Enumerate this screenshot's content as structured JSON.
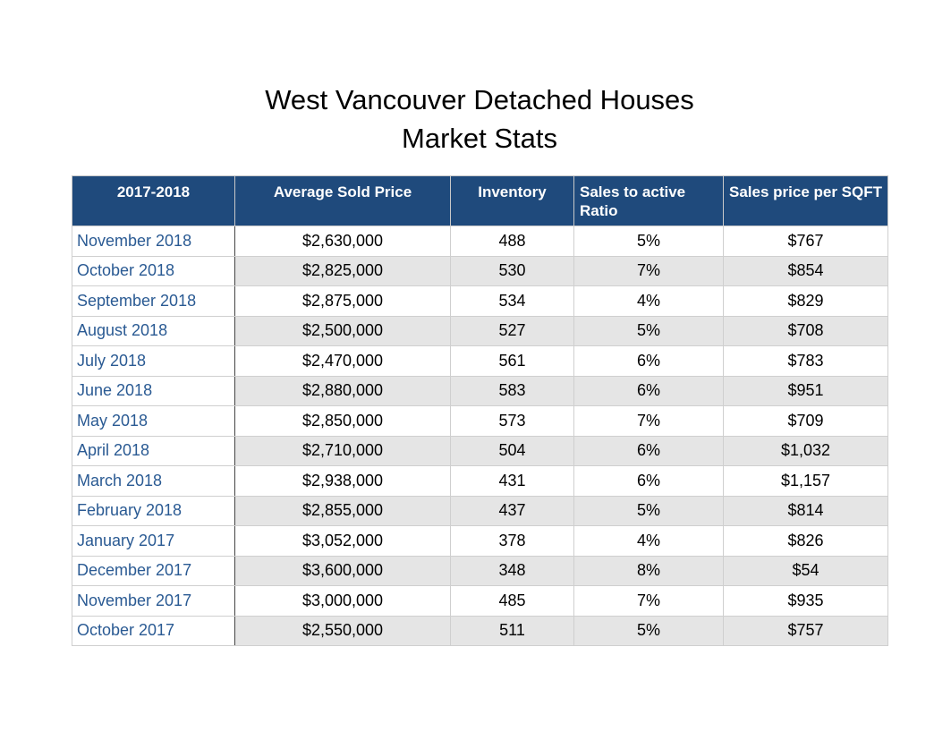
{
  "chart_data": {
    "type": "table",
    "title": [
      "West Vancouver Detached Houses",
      "Market Stats"
    ],
    "columns": [
      "2017-2018",
      "Average Sold Price",
      "Inventory",
      "Sales to active Ratio",
      "Sales price per SQFT"
    ],
    "rows": [
      [
        "November 2018",
        "$2,630,000",
        "488",
        "5%",
        "$767"
      ],
      [
        "October 2018",
        "$2,825,000",
        "530",
        "7%",
        "$854"
      ],
      [
        "September 2018",
        "$2,875,000",
        "534",
        "4%",
        "$829"
      ],
      [
        "August 2018",
        "$2,500,000",
        "527",
        "5%",
        "$708"
      ],
      [
        "July 2018",
        "$2,470,000",
        "561",
        "6%",
        "$783"
      ],
      [
        "June 2018",
        "$2,880,000",
        "583",
        "6%",
        "$951"
      ],
      [
        "May 2018",
        "$2,850,000",
        "573",
        "7%",
        "$709"
      ],
      [
        "April 2018",
        "$2,710,000",
        "504",
        "6%",
        "$1,032"
      ],
      [
        "March 2018",
        "$2,938,000",
        "431",
        "6%",
        "$1,157"
      ],
      [
        "February 2018",
        "$2,855,000",
        "437",
        "5%",
        "$814"
      ],
      [
        "January 2017",
        "$3,052,000",
        "378",
        "4%",
        "$826"
      ],
      [
        "December 2017",
        "$3,600,000",
        "348",
        "8%",
        "$54"
      ],
      [
        "November 2017",
        "$3,000,000",
        "485",
        "7%",
        "$935"
      ],
      [
        "October 2017",
        "$2,550,000",
        "511",
        "5%",
        "$757"
      ]
    ]
  },
  "colors": {
    "header_bg": "#1f4a7c",
    "header_text": "#ffffff",
    "month_text": "#2a5a93",
    "stripe": "#e5e5e5"
  }
}
